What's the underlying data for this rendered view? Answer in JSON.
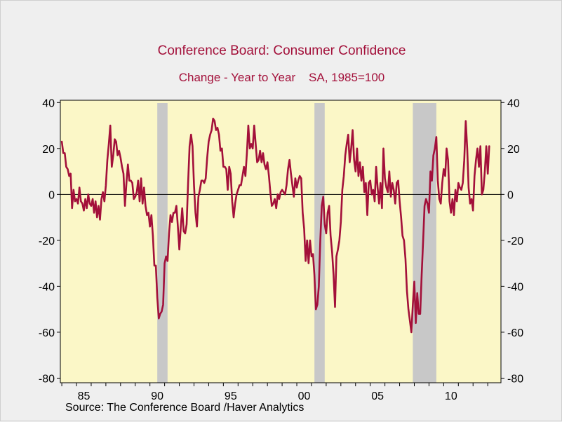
{
  "chart_data": {
    "type": "line",
    "title": "Conference Board: Consumer Confidence",
    "subtitle_left": "Change - Year to Year",
    "subtitle_right": "SA, 1985=100",
    "source": "Source:  The Conference Board /Haver Analytics",
    "xlabel": "",
    "ylabel": "",
    "xlim": [
      1983.9,
      2013.9
    ],
    "ylim": [
      -82,
      41
    ],
    "yticks": [
      40,
      20,
      0,
      -20,
      -40,
      -60,
      -80
    ],
    "xticks": [
      {
        "value": 1985,
        "label": "85"
      },
      {
        "value": 1990,
        "label": "90"
      },
      {
        "value": 1995,
        "label": "95"
      },
      {
        "value": 2000,
        "label": "00"
      },
      {
        "value": 2005,
        "label": "05"
      },
      {
        "value": 2010,
        "label": "10"
      }
    ],
    "grid": false,
    "zero_line": true,
    "recessions": [
      {
        "start": 1990.5,
        "end": 1991.2
      },
      {
        "start": 2001.2,
        "end": 2001.9
      },
      {
        "start": 2007.9,
        "end": 2009.5
      }
    ],
    "colors": {
      "line": "#a3103a",
      "plot_background": "#fbf7c7",
      "recession": "#c8c8c8",
      "title": "#a3103a"
    },
    "series": [
      {
        "values": [
          [
            1984.0,
            23
          ],
          [
            1984.1,
            18
          ],
          [
            1984.2,
            18
          ],
          [
            1984.3,
            12
          ],
          [
            1984.4,
            11
          ],
          [
            1984.5,
            8
          ],
          [
            1984.6,
            9
          ],
          [
            1984.7,
            -6
          ],
          [
            1984.8,
            2
          ],
          [
            1984.9,
            -3
          ],
          [
            1985.0,
            -2
          ],
          [
            1985.1,
            -4
          ],
          [
            1985.2,
            3
          ],
          [
            1985.3,
            -3
          ],
          [
            1985.4,
            -4
          ],
          [
            1985.5,
            -7
          ],
          [
            1985.6,
            -2
          ],
          [
            1985.7,
            -6
          ],
          [
            1985.8,
            0
          ],
          [
            1985.9,
            -4
          ],
          [
            1986.0,
            -5
          ],
          [
            1986.1,
            -2
          ],
          [
            1986.2,
            -8
          ],
          [
            1986.3,
            -3
          ],
          [
            1986.4,
            -10
          ],
          [
            1986.5,
            -5
          ],
          [
            1986.6,
            -11
          ],
          [
            1986.7,
            -2
          ],
          [
            1986.8,
            1
          ],
          [
            1986.9,
            -3
          ],
          [
            1987.0,
            4
          ],
          [
            1987.1,
            15
          ],
          [
            1987.2,
            22
          ],
          [
            1987.3,
            30
          ],
          [
            1987.4,
            12
          ],
          [
            1987.5,
            17
          ],
          [
            1987.6,
            24
          ],
          [
            1987.7,
            23
          ],
          [
            1987.8,
            17
          ],
          [
            1987.9,
            19
          ],
          [
            1988.0,
            16
          ],
          [
            1988.1,
            12
          ],
          [
            1988.2,
            9
          ],
          [
            1988.3,
            -5
          ],
          [
            1988.4,
            5
          ],
          [
            1988.5,
            13
          ],
          [
            1988.6,
            6
          ],
          [
            1988.7,
            6
          ],
          [
            1988.8,
            5
          ],
          [
            1988.9,
            -2
          ],
          [
            1989.0,
            -1
          ],
          [
            1989.1,
            1
          ],
          [
            1989.2,
            6
          ],
          [
            1989.3,
            -3
          ],
          [
            1989.4,
            7
          ],
          [
            1989.5,
            -4
          ],
          [
            1989.6,
            3
          ],
          [
            1989.7,
            -5
          ],
          [
            1989.8,
            -9
          ],
          [
            1989.9,
            -8
          ],
          [
            1990.0,
            -14
          ],
          [
            1990.1,
            -9
          ],
          [
            1990.2,
            -18
          ],
          [
            1990.3,
            -31
          ],
          [
            1990.4,
            -31
          ],
          [
            1990.5,
            -45
          ],
          [
            1990.6,
            -54
          ],
          [
            1990.7,
            -52
          ],
          [
            1990.8,
            -51
          ],
          [
            1990.9,
            -48
          ],
          [
            1991.0,
            -30
          ],
          [
            1991.1,
            -27
          ],
          [
            1991.2,
            -29
          ],
          [
            1991.3,
            -17
          ],
          [
            1991.4,
            -9
          ],
          [
            1991.5,
            -12
          ],
          [
            1991.6,
            -8
          ],
          [
            1991.7,
            -8
          ],
          [
            1991.8,
            -5
          ],
          [
            1991.9,
            -14
          ],
          [
            1992.0,
            -24
          ],
          [
            1992.1,
            -14
          ],
          [
            1992.2,
            -6
          ],
          [
            1992.3,
            -16
          ],
          [
            1992.4,
            -17
          ],
          [
            1992.5,
            -13
          ],
          [
            1992.6,
            5
          ],
          [
            1992.7,
            21
          ],
          [
            1992.8,
            26
          ],
          [
            1992.9,
            21
          ],
          [
            1993.0,
            4
          ],
          [
            1993.1,
            -8
          ],
          [
            1993.2,
            -14
          ],
          [
            1993.3,
            -1
          ],
          [
            1993.4,
            2
          ],
          [
            1993.5,
            6
          ],
          [
            1993.6,
            6
          ],
          [
            1993.7,
            5
          ],
          [
            1993.8,
            7
          ],
          [
            1993.9,
            16
          ],
          [
            1994.0,
            23
          ],
          [
            1994.1,
            26
          ],
          [
            1994.2,
            28
          ],
          [
            1994.3,
            33
          ],
          [
            1994.4,
            32
          ],
          [
            1994.5,
            28
          ],
          [
            1994.6,
            29
          ],
          [
            1994.7,
            26
          ],
          [
            1994.8,
            19
          ],
          [
            1994.9,
            20
          ],
          [
            1995.0,
            12
          ],
          [
            1995.1,
            12
          ],
          [
            1995.2,
            11
          ],
          [
            1995.3,
            2
          ],
          [
            1995.4,
            12
          ],
          [
            1995.5,
            9
          ],
          [
            1995.6,
            -3
          ],
          [
            1995.7,
            -10
          ],
          [
            1995.8,
            -4
          ],
          [
            1995.9,
            0
          ],
          [
            1996.0,
            2
          ],
          [
            1996.1,
            4
          ],
          [
            1996.2,
            4
          ],
          [
            1996.3,
            8
          ],
          [
            1996.4,
            12
          ],
          [
            1996.5,
            8
          ],
          [
            1996.6,
            18
          ],
          [
            1996.7,
            30
          ],
          [
            1996.8,
            20
          ],
          [
            1996.9,
            22
          ],
          [
            1997.0,
            20
          ],
          [
            1997.1,
            30
          ],
          [
            1997.2,
            22
          ],
          [
            1997.3,
            14
          ],
          [
            1997.4,
            15
          ],
          [
            1997.5,
            19
          ],
          [
            1997.6,
            14
          ],
          [
            1997.7,
            18
          ],
          [
            1997.8,
            13
          ],
          [
            1997.9,
            11
          ],
          [
            1998.0,
            14
          ],
          [
            1998.1,
            8
          ],
          [
            1998.2,
            1
          ],
          [
            1998.3,
            -5
          ],
          [
            1998.4,
            -4
          ],
          [
            1998.5,
            -2
          ],
          [
            1998.6,
            -6
          ],
          [
            1998.7,
            0
          ],
          [
            1998.8,
            -2
          ],
          [
            1998.9,
            1
          ],
          [
            1999.0,
            2
          ],
          [
            1999.1,
            1
          ],
          [
            1999.2,
            0
          ],
          [
            1999.3,
            4
          ],
          [
            1999.4,
            11
          ],
          [
            1999.5,
            15
          ],
          [
            1999.6,
            9
          ],
          [
            1999.7,
            4
          ],
          [
            1999.8,
            -1
          ],
          [
            1999.9,
            7
          ],
          [
            2000.0,
            3
          ],
          [
            2000.1,
            6
          ],
          [
            2000.2,
            8
          ],
          [
            2000.3,
            7
          ],
          [
            2000.4,
            -8
          ],
          [
            2000.5,
            -15
          ],
          [
            2000.6,
            -29
          ],
          [
            2000.7,
            -20
          ],
          [
            2000.8,
            -30
          ],
          [
            2000.9,
            -20
          ],
          [
            2001.0,
            -27
          ],
          [
            2001.1,
            -26
          ],
          [
            2001.2,
            -35
          ],
          [
            2001.3,
            -50
          ],
          [
            2001.4,
            -48
          ],
          [
            2001.5,
            -40
          ],
          [
            2001.6,
            -20
          ],
          [
            2001.7,
            -5
          ],
          [
            2001.8,
            -1
          ],
          [
            2001.9,
            -13
          ],
          [
            2002.0,
            -17
          ],
          [
            2002.1,
            -8
          ],
          [
            2002.2,
            -5
          ],
          [
            2002.3,
            -18
          ],
          [
            2002.4,
            -25
          ],
          [
            2002.5,
            -35
          ],
          [
            2002.6,
            -49
          ],
          [
            2002.7,
            -27
          ],
          [
            2002.8,
            -24
          ],
          [
            2002.9,
            -20
          ],
          [
            2003.0,
            -12
          ],
          [
            2003.1,
            2
          ],
          [
            2003.2,
            8
          ],
          [
            2003.3,
            17
          ],
          [
            2003.4,
            22
          ],
          [
            2003.5,
            26
          ],
          [
            2003.6,
            14
          ],
          [
            2003.7,
            20
          ],
          [
            2003.8,
            28
          ],
          [
            2003.9,
            15
          ],
          [
            2004.0,
            10
          ],
          [
            2004.1,
            20
          ],
          [
            2004.2,
            8
          ],
          [
            2004.3,
            14
          ],
          [
            2004.4,
            6
          ],
          [
            2004.5,
            12
          ],
          [
            2004.6,
            1
          ],
          [
            2004.7,
            5
          ],
          [
            2004.8,
            -9
          ],
          [
            2004.9,
            5
          ],
          [
            2005.0,
            6
          ],
          [
            2005.1,
            0
          ],
          [
            2005.2,
            2
          ],
          [
            2005.3,
            -3
          ],
          [
            2005.4,
            12
          ],
          [
            2005.5,
            3
          ],
          [
            2005.6,
            -4
          ],
          [
            2005.7,
            5
          ],
          [
            2005.8,
            -6
          ],
          [
            2005.9,
            20
          ],
          [
            2006.0,
            7
          ],
          [
            2006.1,
            3
          ],
          [
            2006.2,
            1
          ],
          [
            2006.3,
            10
          ],
          [
            2006.4,
            -1
          ],
          [
            2006.5,
            5
          ],
          [
            2006.6,
            2
          ],
          [
            2006.7,
            -4
          ],
          [
            2006.8,
            5
          ],
          [
            2006.9,
            6
          ],
          [
            2007.0,
            -3
          ],
          [
            2007.1,
            -10
          ],
          [
            2007.2,
            -18
          ],
          [
            2007.3,
            -20
          ],
          [
            2007.4,
            -28
          ],
          [
            2007.5,
            -42
          ],
          [
            2007.6,
            -50
          ],
          [
            2007.7,
            -55
          ],
          [
            2007.8,
            -60
          ],
          [
            2007.9,
            -48
          ],
          [
            2008.0,
            -38
          ],
          [
            2008.1,
            -56
          ],
          [
            2008.2,
            -43
          ],
          [
            2008.3,
            -52
          ],
          [
            2008.4,
            -52
          ],
          [
            2008.5,
            -35
          ],
          [
            2008.6,
            -20
          ],
          [
            2008.7,
            -5
          ],
          [
            2008.8,
            -2
          ],
          [
            2008.9,
            -4
          ],
          [
            2009.0,
            -8
          ],
          [
            2009.1,
            10
          ],
          [
            2009.2,
            6
          ],
          [
            2009.3,
            17
          ],
          [
            2009.4,
            20
          ],
          [
            2009.5,
            25
          ],
          [
            2009.6,
            6
          ],
          [
            2009.7,
            -2
          ],
          [
            2009.8,
            -4
          ],
          [
            2009.9,
            5
          ],
          [
            2010.0,
            11
          ],
          [
            2010.1,
            8
          ],
          [
            2010.2,
            20
          ],
          [
            2010.3,
            15
          ],
          [
            2010.4,
            -3
          ],
          [
            2010.5,
            -8
          ],
          [
            2010.6,
            -2
          ],
          [
            2010.7,
            -9
          ],
          [
            2010.8,
            2
          ],
          [
            2010.9,
            -3
          ],
          [
            2011.0,
            5
          ],
          [
            2011.1,
            3
          ],
          [
            2011.2,
            2
          ],
          [
            2011.3,
            5
          ],
          [
            2011.4,
            15
          ],
          [
            2011.5,
            32
          ],
          [
            2011.6,
            20
          ],
          [
            2011.7,
            3
          ],
          [
            2011.8,
            -4
          ],
          [
            2011.9,
            -2
          ],
          [
            2012.0,
            -7
          ],
          [
            2012.1,
            8
          ],
          [
            2012.2,
            15
          ],
          [
            2012.3,
            20
          ],
          [
            2012.4,
            12
          ],
          [
            2012.5,
            21
          ],
          [
            2012.6,
            0
          ],
          [
            2012.7,
            2
          ],
          [
            2012.8,
            10
          ],
          [
            2012.9,
            21
          ],
          [
            2013.0,
            9
          ],
          [
            2013.1,
            21
          ]
        ]
      }
    ]
  }
}
